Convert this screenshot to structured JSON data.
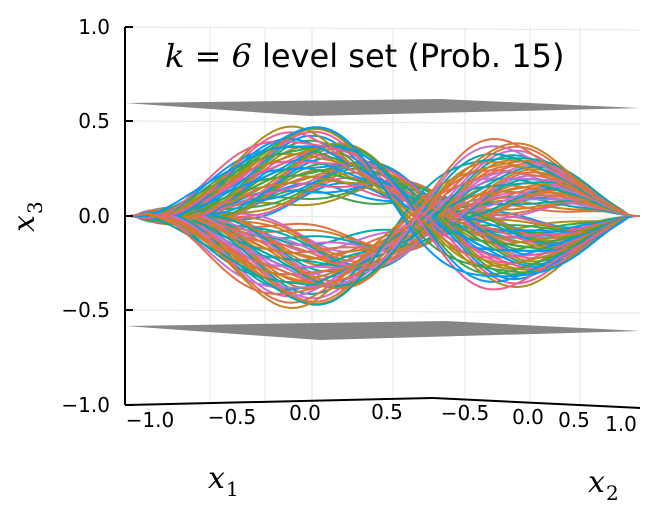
{
  "chart_data": {
    "type": "line",
    "title_math": "k = 6",
    "title_text": "level set (Prob. 15)",
    "xlabel_var": "x",
    "xlabel_sub": "1",
    "ylabel_var": "x",
    "ylabel_sub": "2",
    "zlabel_var": "x",
    "zlabel_sub": "3",
    "x1_ticks": [
      "−1.0",
      "−0.5",
      "0.0",
      "0.5"
    ],
    "x2_ticks": [
      "−0.5",
      "0.0",
      "0.5",
      "1.0"
    ],
    "x3_ticks": [
      "1.0",
      "0.5",
      "0.0",
      "−0.5",
      "−1.0"
    ],
    "x1_range": [
      -1.0,
      1.0
    ],
    "x2_range": [
      -1.0,
      1.0
    ],
    "x3_range": [
      -1.0,
      1.0
    ],
    "planes_x3": [
      0.58,
      -0.58
    ],
    "plane_color": "#7f7f7f",
    "series_colors": [
      "#009AFA",
      "#E36F47",
      "#3EA44E",
      "#C371D2",
      "#AC8E18",
      "#00A9AD",
      "#ED5E93",
      "#C68225"
    ],
    "grid": true,
    "legend": "none"
  }
}
